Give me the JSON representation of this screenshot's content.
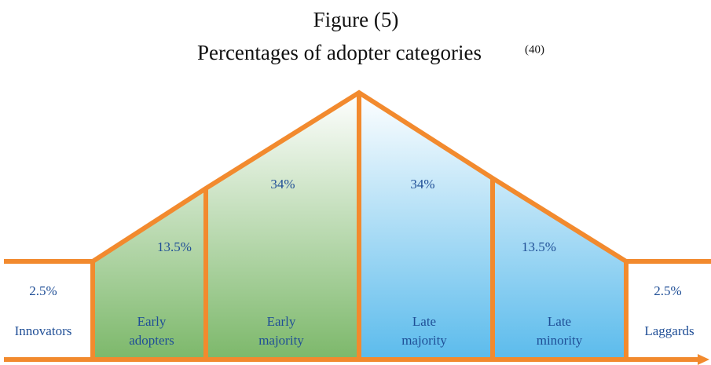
{
  "title": "Figure (5)",
  "subtitle": "Percentages of adopter categories",
  "citation": "(40)",
  "segments": [
    {
      "percent": "2.5%",
      "name": [
        "Innovators"
      ]
    },
    {
      "percent": "13.5%",
      "name": [
        "Early",
        "adopters"
      ]
    },
    {
      "percent": "34%",
      "name": [
        "Early",
        "majority"
      ]
    },
    {
      "percent": "34%",
      "name": [
        "Late",
        "majority"
      ]
    },
    {
      "percent": "13.5%",
      "name": [
        "Late",
        "minority"
      ]
    },
    {
      "percent": "2.5%",
      "name": [
        "Laggards"
      ]
    }
  ]
}
